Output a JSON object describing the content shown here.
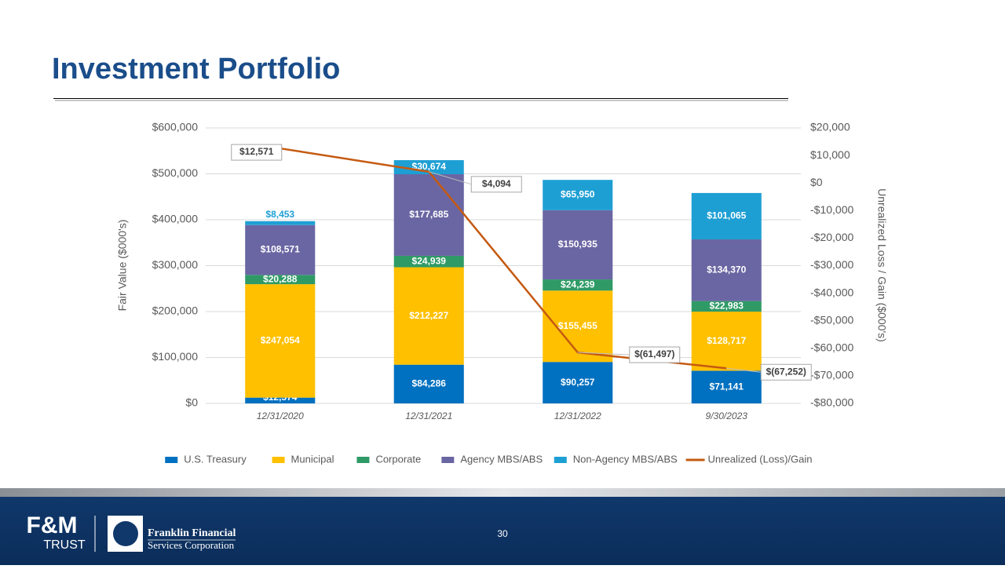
{
  "page": {
    "title": "Investment Portfolio",
    "page_number": 30,
    "logo_left": [
      "F&M",
      "TRUST"
    ],
    "logo_right": [
      "Franklin Financial",
      "Services Corporation"
    ]
  },
  "chart_data": {
    "type": "stacked-bar-line",
    "categories": [
      "12/31/2020",
      "12/31/2021",
      "12/31/2022",
      "9/30/2023"
    ],
    "y_label": "Fair Value ($000's)",
    "y2_label": "Unrealized Loss / Gain ($000's)",
    "ylim": [
      0,
      600000
    ],
    "yticks": [
      {
        "value": 0,
        "label": "$0"
      },
      {
        "value": 100000,
        "label": "$100,000"
      },
      {
        "value": 200000,
        "label": "$200,000"
      },
      {
        "value": 300000,
        "label": "$300,000"
      },
      {
        "value": 400000,
        "label": "$400,000"
      },
      {
        "value": 500000,
        "label": "$500,000"
      },
      {
        "value": 600000,
        "label": "$600,000"
      }
    ],
    "y2lim": [
      -80000,
      20000
    ],
    "y2ticks": [
      {
        "value": -80000,
        "label": "-$80,000"
      },
      {
        "value": -70000,
        "label": "-$70,000"
      },
      {
        "value": -60000,
        "label": "-$60,000"
      },
      {
        "value": -50000,
        "label": "-$50,000"
      },
      {
        "value": -40000,
        "label": "-$40,000"
      },
      {
        "value": -30000,
        "label": "-$30,000"
      },
      {
        "value": -20000,
        "label": "-$20,000"
      },
      {
        "value": -10000,
        "label": "-$10,000"
      },
      {
        "value": 0,
        "label": "$0"
      },
      {
        "value": 10000,
        "label": "$10,000"
      },
      {
        "value": 20000,
        "label": "$20,000"
      }
    ],
    "grid": true,
    "legend": "bottom",
    "series": [
      {
        "name": "U.S. Treasury",
        "color": "#0070c0",
        "values": [
          12574,
          84286,
          90257,
          71141
        ],
        "value_labels": [
          "$12,574",
          "$84,286",
          "$90,257",
          "$71,141"
        ]
      },
      {
        "name": "Municipal",
        "color": "#ffc000",
        "values": [
          247054,
          212227,
          155455,
          128717
        ],
        "value_labels": [
          "$247,054",
          "$212,227",
          "$155,455",
          "$128,717"
        ]
      },
      {
        "name": "Corporate",
        "color": "#2f9a66",
        "values": [
          20288,
          24939,
          24239,
          22983
        ],
        "value_labels": [
          "$20,288",
          "$24,939",
          "$24,239",
          "$22,983"
        ]
      },
      {
        "name": "Agency MBS/ABS",
        "color": "#6a66a3",
        "values": [
          108571,
          177685,
          150935,
          134370
        ],
        "value_labels": [
          "$108,571",
          "$177,685",
          "$150,935",
          "$134,370"
        ]
      },
      {
        "name": "Non-Agency MBS/ABS",
        "color": "#1e9fd4",
        "values": [
          8453,
          30674,
          65950,
          101065
        ],
        "value_labels": [
          "$8,453",
          "$30,674",
          "$65,950",
          "$101,065"
        ]
      },
      {
        "name": "Unrealized (Loss)/Gain",
        "color": "#c55a11",
        "type": "line",
        "axis": "y2",
        "values": [
          12571,
          4094,
          -61497,
          -67252
        ],
        "value_labels": [
          "$12,571",
          "$4,094",
          "$(61,497)",
          "$(67,252)"
        ]
      }
    ]
  }
}
